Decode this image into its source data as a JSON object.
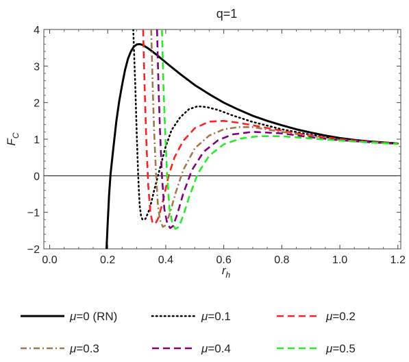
{
  "chart_data": {
    "type": "line",
    "title": "q=1",
    "xlabel_main": "r",
    "xlabel_sub": "h",
    "ylabel_main": "F",
    "ylabel_sub": "C",
    "xlim": [
      -0.02,
      1.21
    ],
    "ylim": [
      -2,
      4
    ],
    "xticks": [
      0.0,
      0.2,
      0.4,
      0.6,
      0.8,
      1.0,
      1.2
    ],
    "xtick_labels": [
      "0.0",
      "0.2",
      "0.4",
      "0.6",
      "0.8",
      "1.0",
      "1.2"
    ],
    "yticks": [
      -2,
      -1,
      0,
      1,
      2,
      3,
      4
    ],
    "ytick_labels": [
      "−2",
      "−1",
      "0",
      "1",
      "2",
      "3",
      "4"
    ],
    "legend_position": "bottom",
    "series": [
      {
        "name_symbol": "μ",
        "name_rest": "=0 (RN)",
        "color": "#000000",
        "dash": "solid",
        "points": [
          [
            0.196,
            -2.0
          ],
          [
            0.2,
            -1.3
          ],
          [
            0.205,
            -0.5
          ],
          [
            0.21,
            0.05
          ],
          [
            0.22,
            0.8
          ],
          [
            0.23,
            1.5
          ],
          [
            0.24,
            2.05
          ],
          [
            0.25,
            2.5
          ],
          [
            0.26,
            2.9
          ],
          [
            0.27,
            3.2
          ],
          [
            0.28,
            3.4
          ],
          [
            0.29,
            3.53
          ],
          [
            0.3,
            3.59
          ],
          [
            0.31,
            3.6
          ],
          [
            0.32,
            3.58
          ],
          [
            0.34,
            3.48
          ],
          [
            0.37,
            3.3
          ],
          [
            0.4,
            3.1
          ],
          [
            0.45,
            2.78
          ],
          [
            0.5,
            2.48
          ],
          [
            0.55,
            2.23
          ],
          [
            0.6,
            2.0
          ],
          [
            0.65,
            1.81
          ],
          [
            0.7,
            1.64
          ],
          [
            0.75,
            1.5
          ],
          [
            0.8,
            1.38
          ],
          [
            0.85,
            1.27
          ],
          [
            0.9,
            1.18
          ],
          [
            0.95,
            1.1
          ],
          [
            1.0,
            1.03
          ],
          [
            1.05,
            0.98
          ],
          [
            1.1,
            0.94
          ],
          [
            1.15,
            0.91
          ],
          [
            1.2,
            0.88
          ]
        ]
      },
      {
        "name_symbol": "μ",
        "name_rest": "=0.1",
        "color": "#000000",
        "dash": "dotted",
        "points": [
          [
            0.288,
            4.0
          ],
          [
            0.295,
            2.5
          ],
          [
            0.3,
            1.2
          ],
          [
            0.305,
            0.0
          ],
          [
            0.31,
            -0.8
          ],
          [
            0.315,
            -1.1
          ],
          [
            0.32,
            -1.2
          ],
          [
            0.33,
            -1.18
          ],
          [
            0.345,
            -0.9
          ],
          [
            0.36,
            -0.4
          ],
          [
            0.38,
            0.2
          ],
          [
            0.4,
            0.8
          ],
          [
            0.42,
            1.25
          ],
          [
            0.45,
            1.6
          ],
          [
            0.48,
            1.82
          ],
          [
            0.51,
            1.9
          ],
          [
            0.54,
            1.88
          ],
          [
            0.58,
            1.8
          ],
          [
            0.63,
            1.65
          ],
          [
            0.7,
            1.47
          ],
          [
            0.8,
            1.27
          ],
          [
            0.9,
            1.12
          ],
          [
            1.0,
            1.0
          ],
          [
            1.1,
            0.93
          ],
          [
            1.2,
            0.88
          ]
        ]
      },
      {
        "name_symbol": "μ",
        "name_rest": "=0.2",
        "color": "#ff2020",
        "dash": "dashed",
        "points": [
          [
            0.322,
            4.0
          ],
          [
            0.327,
            2.5
          ],
          [
            0.333,
            1.0
          ],
          [
            0.34,
            -0.3
          ],
          [
            0.347,
            -1.0
          ],
          [
            0.355,
            -1.3
          ],
          [
            0.365,
            -1.3
          ],
          [
            0.375,
            -1.15
          ],
          [
            0.39,
            -0.7
          ],
          [
            0.41,
            0.0
          ],
          [
            0.43,
            0.5
          ],
          [
            0.46,
            0.95
          ],
          [
            0.5,
            1.3
          ],
          [
            0.55,
            1.48
          ],
          [
            0.6,
            1.5
          ],
          [
            0.65,
            1.45
          ],
          [
            0.7,
            1.38
          ],
          [
            0.8,
            1.23
          ],
          [
            0.9,
            1.1
          ],
          [
            1.0,
            1.0
          ],
          [
            1.1,
            0.93
          ],
          [
            1.2,
            0.88
          ]
        ]
      },
      {
        "name_symbol": "μ",
        "name_rest": "=0.3",
        "color": "#a0784a",
        "dash": "dashdot",
        "points": [
          [
            0.35,
            4.0
          ],
          [
            0.355,
            2.5
          ],
          [
            0.36,
            1.2
          ],
          [
            0.367,
            0.0
          ],
          [
            0.373,
            -0.8
          ],
          [
            0.38,
            -1.2
          ],
          [
            0.39,
            -1.4
          ],
          [
            0.4,
            -1.35
          ],
          [
            0.415,
            -1.0
          ],
          [
            0.435,
            -0.45
          ],
          [
            0.46,
            0.15
          ],
          [
            0.5,
            0.75
          ],
          [
            0.55,
            1.1
          ],
          [
            0.6,
            1.27
          ],
          [
            0.65,
            1.33
          ],
          [
            0.7,
            1.33
          ],
          [
            0.8,
            1.2
          ],
          [
            0.9,
            1.08
          ],
          [
            1.0,
            0.98
          ],
          [
            1.1,
            0.92
          ],
          [
            1.2,
            0.87
          ]
        ]
      },
      {
        "name_symbol": "μ",
        "name_rest": "=0.4",
        "color": "#800080",
        "dash": "dashed",
        "points": [
          [
            0.37,
            4.0
          ],
          [
            0.375,
            2.5
          ],
          [
            0.38,
            1.3
          ],
          [
            0.387,
            0.0
          ],
          [
            0.395,
            -0.9
          ],
          [
            0.405,
            -1.3
          ],
          [
            0.415,
            -1.43
          ],
          [
            0.425,
            -1.38
          ],
          [
            0.44,
            -1.05
          ],
          [
            0.46,
            -0.5
          ],
          [
            0.49,
            0.15
          ],
          [
            0.53,
            0.65
          ],
          [
            0.58,
            0.97
          ],
          [
            0.63,
            1.13
          ],
          [
            0.7,
            1.2
          ],
          [
            0.8,
            1.16
          ],
          [
            0.9,
            1.05
          ],
          [
            1.0,
            0.97
          ],
          [
            1.1,
            0.92
          ],
          [
            1.2,
            0.87
          ]
        ]
      },
      {
        "name_symbol": "μ",
        "name_rest": "=0.5",
        "color": "#22ee22",
        "dash": "dashed",
        "points": [
          [
            0.387,
            4.0
          ],
          [
            0.392,
            2.5
          ],
          [
            0.398,
            1.2
          ],
          [
            0.405,
            0.0
          ],
          [
            0.413,
            -0.9
          ],
          [
            0.423,
            -1.3
          ],
          [
            0.433,
            -1.45
          ],
          [
            0.445,
            -1.4
          ],
          [
            0.46,
            -1.1
          ],
          [
            0.48,
            -0.6
          ],
          [
            0.51,
            0.05
          ],
          [
            0.55,
            0.55
          ],
          [
            0.6,
            0.86
          ],
          [
            0.66,
            1.02
          ],
          [
            0.72,
            1.08
          ],
          [
            0.8,
            1.08
          ],
          [
            0.9,
            1.02
          ],
          [
            1.0,
            0.96
          ],
          [
            1.1,
            0.91
          ],
          [
            1.2,
            0.87
          ]
        ]
      }
    ]
  }
}
